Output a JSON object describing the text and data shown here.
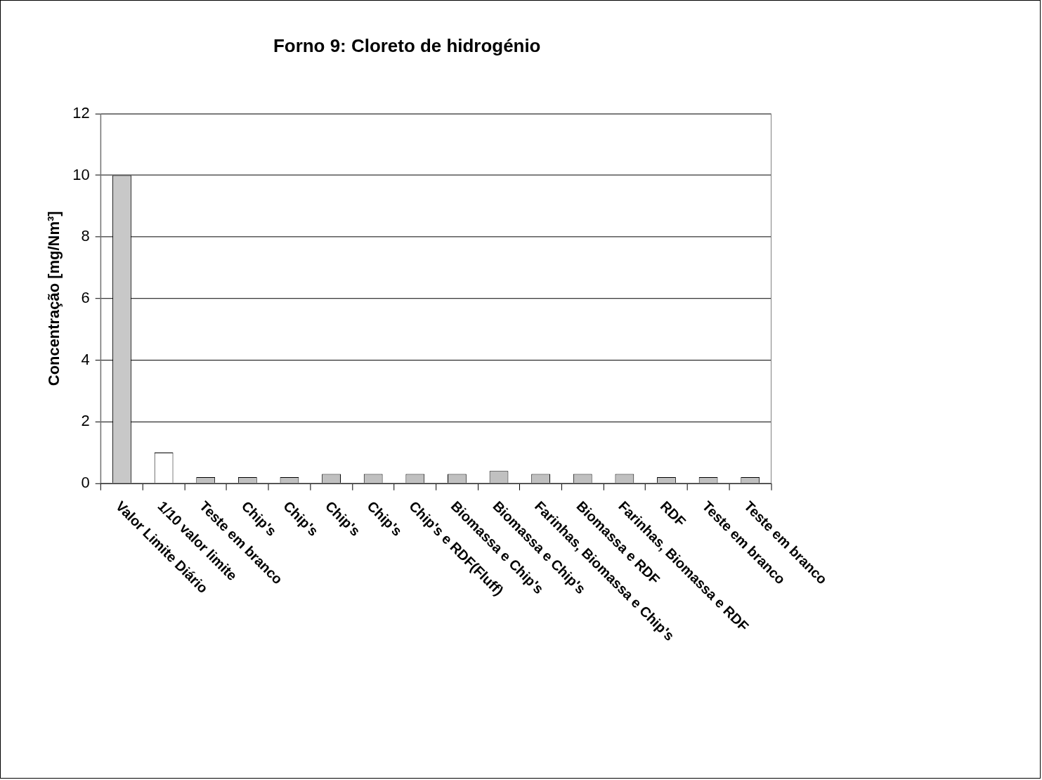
{
  "chart_data": {
    "type": "bar",
    "title": "Forno 9: Cloreto de hidrogénio",
    "ylabel": "Concentração [mg/Nm³]",
    "categories": [
      "Valor Limite Diário",
      "1/10 valor limite",
      "Teste em branco",
      "Chip's",
      "Chip's",
      "Chip's",
      "Chip's",
      "Chip's e RDF(Fluff)",
      "Biomassa e Chip's",
      "Biomassa e Chip's",
      "Farinhas, Biomassa e Chip's",
      "Biomassa e RDF",
      "Farinhas, Biomassa e RDF",
      "RDF",
      "Teste em branco",
      "Teste em branco"
    ],
    "values": [
      10,
      1,
      0.2,
      0.2,
      0.2,
      0.3,
      0.3,
      0.3,
      0.3,
      0.4,
      0.3,
      0.3,
      0.3,
      0.2,
      0.2,
      0.2
    ],
    "colors": [
      "#c8c8c8",
      "#ffffff",
      "#c0c0c0",
      "#c0c0c0",
      "#c0c0c0",
      "#c0c0c0",
      "#c0c0c0",
      "#c0c0c0",
      "#c0c0c0",
      "#c0c0c0",
      "#c0c0c0",
      "#c0c0c0",
      "#c0c0c0",
      "#c0c0c0",
      "#c0c0c0",
      "#c0c0c0"
    ],
    "ylim": [
      0,
      12
    ],
    "yticks": [
      0,
      2,
      4,
      6,
      8,
      10,
      12
    ],
    "grid": "y"
  }
}
